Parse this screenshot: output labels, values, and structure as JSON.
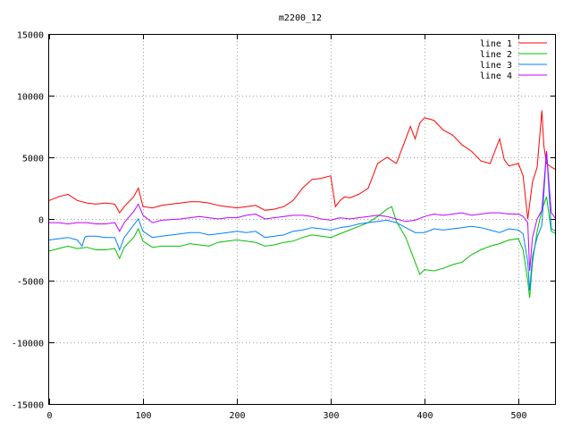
{
  "chart_data": {
    "type": "line",
    "title": "m2200_12",
    "xlabel": "",
    "ylabel": "",
    "xlim": [
      0,
      540
    ],
    "ylim": [
      -15000,
      15000
    ],
    "grid": true,
    "legend_position": "top-right",
    "xticks": [
      0,
      100,
      200,
      300,
      400,
      500
    ],
    "yticks": [
      -15000,
      -10000,
      -5000,
      0,
      5000,
      10000,
      15000
    ],
    "series": [
      {
        "name": "line 1",
        "color": "#ff0000",
        "x": [
          0,
          10,
          20,
          30,
          40,
          50,
          60,
          70,
          75,
          80,
          90,
          95,
          100,
          110,
          120,
          140,
          150,
          160,
          170,
          180,
          190,
          200,
          210,
          220,
          230,
          240,
          250,
          260,
          270,
          280,
          290,
          300,
          305,
          310,
          315,
          320,
          330,
          340,
          350,
          360,
          370,
          380,
          385,
          390,
          395,
          400,
          410,
          420,
          430,
          440,
          450,
          460,
          470,
          480,
          485,
          490,
          500,
          505,
          510,
          515,
          520,
          525,
          527,
          530,
          535,
          540
        ],
        "values": [
          1500,
          1800,
          2000,
          1500,
          1300,
          1200,
          1300,
          1200,
          500,
          1000,
          1800,
          2500,
          1000,
          900,
          1100,
          1300,
          1400,
          1400,
          1300,
          1100,
          1000,
          900,
          1000,
          1100,
          700,
          800,
          1000,
          1500,
          2500,
          3200,
          3300,
          3500,
          1000,
          1500,
          1800,
          1700,
          2000,
          2500,
          4500,
          5000,
          4500,
          6500,
          7500,
          6500,
          7800,
          8200,
          8000,
          7200,
          6800,
          6000,
          5500,
          4700,
          4500,
          6500,
          4800,
          4300,
          4500,
          3500,
          0,
          3000,
          4200,
          8800,
          6000,
          4500,
          4200,
          4000
        ]
      },
      {
        "name": "line 2",
        "color": "#00c000",
        "x": [
          0,
          10,
          20,
          30,
          40,
          50,
          60,
          70,
          75,
          80,
          90,
          95,
          100,
          110,
          120,
          140,
          150,
          160,
          170,
          180,
          190,
          200,
          210,
          220,
          230,
          240,
          250,
          260,
          270,
          280,
          290,
          300,
          310,
          320,
          330,
          340,
          350,
          360,
          365,
          370,
          380,
          385,
          390,
          395,
          400,
          410,
          420,
          430,
          440,
          450,
          460,
          470,
          480,
          490,
          500,
          505,
          510,
          512,
          515,
          520,
          525,
          530,
          535,
          540
        ],
        "values": [
          -2600,
          -2400,
          -2200,
          -2400,
          -2300,
          -2500,
          -2500,
          -2400,
          -3200,
          -2300,
          -1500,
          -800,
          -1800,
          -2300,
          -2200,
          -2200,
          -2000,
          -2100,
          -2200,
          -1900,
          -1800,
          -1700,
          -1800,
          -1900,
          -2200,
          -2100,
          -1900,
          -1800,
          -1500,
          -1300,
          -1400,
          -1500,
          -1200,
          -900,
          -600,
          -300,
          200,
          800,
          1000,
          -200,
          -1500,
          -2500,
          -3500,
          -4500,
          -4100,
          -4200,
          -4000,
          -3700,
          -3500,
          -2900,
          -2500,
          -2200,
          -2000,
          -1700,
          -1600,
          -2500,
          -5000,
          -6400,
          -3500,
          -1000,
          700,
          1800,
          -1000,
          -1200
        ]
      },
      {
        "name": "line 3",
        "color": "#0080ff",
        "x": [
          0,
          10,
          20,
          30,
          35,
          38,
          40,
          50,
          60,
          70,
          75,
          80,
          90,
          95,
          100,
          110,
          120,
          140,
          150,
          160,
          170,
          180,
          190,
          200,
          210,
          220,
          230,
          240,
          250,
          260,
          270,
          280,
          290,
          300,
          310,
          320,
          330,
          340,
          350,
          360,
          370,
          380,
          390,
          400,
          410,
          420,
          430,
          440,
          450,
          460,
          470,
          480,
          490,
          500,
          505,
          510,
          512,
          515,
          520,
          525,
          530,
          535,
          540
        ],
        "values": [
          -1700,
          -1600,
          -1500,
          -1700,
          -2200,
          -1500,
          -1400,
          -1400,
          -1500,
          -1500,
          -2500,
          -1500,
          -500,
          0,
          -1000,
          -1500,
          -1400,
          -1200,
          -1100,
          -1100,
          -1300,
          -1200,
          -1100,
          -1000,
          -1100,
          -1000,
          -1500,
          -1400,
          -1300,
          -1000,
          -900,
          -700,
          -800,
          -900,
          -700,
          -600,
          -400,
          -300,
          -200,
          -100,
          -300,
          -700,
          -1100,
          -1100,
          -800,
          -900,
          -800,
          -700,
          -600,
          -700,
          -900,
          -1100,
          -800,
          -900,
          -1200,
          -3500,
          -5800,
          -3000,
          -1500,
          -500,
          5500,
          -800,
          -1000
        ]
      },
      {
        "name": "line 4",
        "color": "#c000ff",
        "x": [
          0,
          10,
          20,
          30,
          40,
          50,
          60,
          70,
          75,
          80,
          90,
          95,
          100,
          110,
          120,
          140,
          150,
          160,
          170,
          180,
          190,
          200,
          210,
          220,
          230,
          240,
          250,
          260,
          270,
          280,
          290,
          300,
          310,
          320,
          330,
          340,
          350,
          360,
          370,
          380,
          390,
          400,
          410,
          420,
          430,
          440,
          450,
          460,
          470,
          480,
          490,
          500,
          505,
          510,
          512,
          515,
          520,
          525,
          530,
          535,
          540
        ],
        "values": [
          -300,
          -300,
          -400,
          -300,
          -300,
          -400,
          -400,
          -300,
          -1000,
          -300,
          600,
          1200,
          300,
          -300,
          -100,
          0,
          100,
          200,
          100,
          0,
          100,
          100,
          300,
          400,
          0,
          100,
          200,
          300,
          300,
          200,
          0,
          -100,
          100,
          0,
          100,
          200,
          300,
          200,
          0,
          -200,
          -100,
          200,
          400,
          300,
          400,
          500,
          300,
          400,
          500,
          500,
          400,
          400,
          200,
          -300,
          -4200,
          -1500,
          0,
          700,
          5500,
          500,
          0
        ]
      }
    ]
  }
}
